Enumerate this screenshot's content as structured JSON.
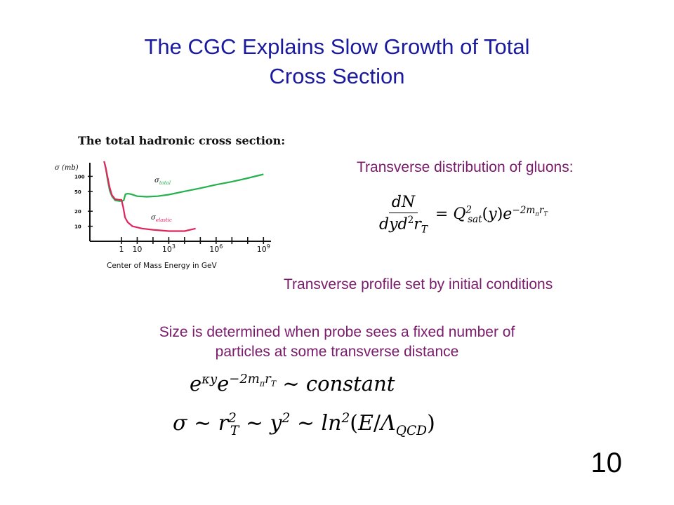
{
  "slide": {
    "title_line1": "The CGC Explains Slow Growth of Total",
    "title_line2": "Cross Section",
    "slide_number": "10",
    "gluon_label": "Transverse distribution of gluons:",
    "profile_text": "Transverse profile set by initial conditions",
    "size_line1": "Size is determined when probe sees a fixed number of",
    "size_line2": "particles at some transverse distance",
    "colors": {
      "title": "#1a1aa0",
      "text": "#7a1a6a",
      "total": "#22b14c",
      "elastic": "#e0245e"
    }
  },
  "chart_data": {
    "type": "line",
    "title": "The total hadronic cross section:",
    "ylabel": "σ (mb)",
    "xlabel": "Center of Mass Energy in GeV",
    "x_scale": "log",
    "y_scale": "log",
    "xlim": [
      0.01,
      3000000000
    ],
    "ylim": [
      5,
      200
    ],
    "x_ticks": [
      {
        "value": 1,
        "label": "1"
      },
      {
        "value": 10,
        "label": "10"
      },
      {
        "value": 1000,
        "label": "10",
        "exp": "3"
      },
      {
        "value": 1000000,
        "label": "10",
        "exp": "6"
      },
      {
        "value": 1000000000,
        "label": "10",
        "exp": "9"
      }
    ],
    "y_ticks": [
      {
        "value": 100,
        "label": "100"
      },
      {
        "value": 50,
        "label": "50"
      },
      {
        "value": 20,
        "label": "20"
      },
      {
        "value": 10,
        "label": "10"
      }
    ],
    "series": [
      {
        "name": "σ_total",
        "sym": "σ",
        "sub": "total",
        "color": "#22b14c",
        "points": [
          [
            0.08,
            200
          ],
          [
            0.1,
            150
          ],
          [
            0.13,
            90
          ],
          [
            0.18,
            52
          ],
          [
            0.25,
            40
          ],
          [
            0.4,
            33
          ],
          [
            0.7,
            32
          ],
          [
            1,
            32
          ],
          [
            1.4,
            33
          ],
          [
            1.8,
            44
          ],
          [
            2.5,
            45
          ],
          [
            4,
            44
          ],
          [
            10,
            40
          ],
          [
            40,
            39
          ],
          [
            200,
            40
          ],
          [
            1000,
            43
          ],
          [
            10000,
            50
          ],
          [
            100000,
            58
          ],
          [
            1000000,
            68
          ],
          [
            10000000,
            78
          ],
          [
            100000000,
            92
          ],
          [
            1000000000,
            110
          ]
        ]
      },
      {
        "name": "σ_elastic",
        "sym": "σ",
        "sub": "elastic",
        "color": "#e0245e",
        "points": [
          [
            0.08,
            200
          ],
          [
            0.1,
            150
          ],
          [
            0.13,
            100
          ],
          [
            0.18,
            60
          ],
          [
            0.25,
            42
          ],
          [
            0.4,
            35
          ],
          [
            0.7,
            34
          ],
          [
            1,
            34
          ],
          [
            1.3,
            24
          ],
          [
            1.7,
            15
          ],
          [
            2.5,
            12
          ],
          [
            5,
            10
          ],
          [
            20,
            9
          ],
          [
            100,
            8.5
          ],
          [
            1000,
            8
          ],
          [
            10000,
            8
          ],
          [
            50000,
            9
          ]
        ]
      }
    ]
  }
}
